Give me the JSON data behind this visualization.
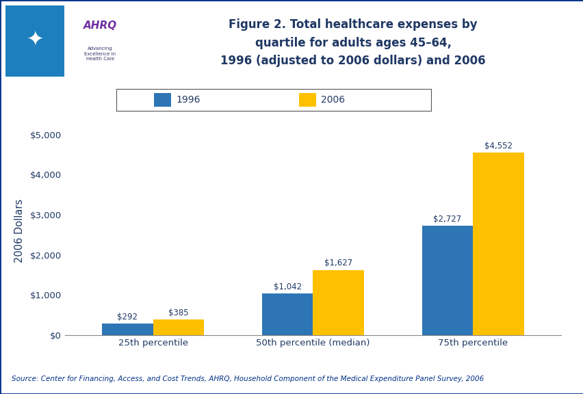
{
  "title": "Figure 2. Total healthcare expenses by\nquartile for adults ages 45–64,\n1996 (adjusted to 2006 dollars) and 2006",
  "categories": [
    "25th percentile",
    "50th percentile (median)",
    "75th percentile"
  ],
  "values_1996": [
    292,
    1042,
    2727
  ],
  "values_2006": [
    385,
    1627,
    4552
  ],
  "labels_1996": [
    "$292",
    "$1,042",
    "$2,727"
  ],
  "labels_2006": [
    "$385",
    "$1,627",
    "$4,552"
  ],
  "color_1996": "#2E75B6",
  "color_2006": "#FFC000",
  "ylabel": "2006 Dollars",
  "yticks": [
    0,
    1000,
    2000,
    3000,
    4000,
    5000
  ],
  "ytick_labels": [
    "$0",
    "$1,000",
    "$2,000",
    "$3,000",
    "$4,000",
    "$5,000"
  ],
  "ylim": [
    0,
    5200
  ],
  "legend_1996": "1996",
  "legend_2006": "2006",
  "source_text": "Source: Center for Financing, Access, and Cost Trends, AHRQ, Household Component of the Medical Expenditure Panel Survey, 2006",
  "title_color": "#1F3864",
  "axis_label_color": "#1F3864",
  "bar_label_color": "#1F3864",
  "background_color": "#FFFFFF",
  "header_line_color": "#003087",
  "bar_width": 0.32,
  "logo_left_color": "#1E7FBE",
  "logo_right_color": "#FFFFFF",
  "logo_border_color": "#003087",
  "ahrq_text_color": "#7030A0",
  "ahrq_sub_color": "#333333"
}
